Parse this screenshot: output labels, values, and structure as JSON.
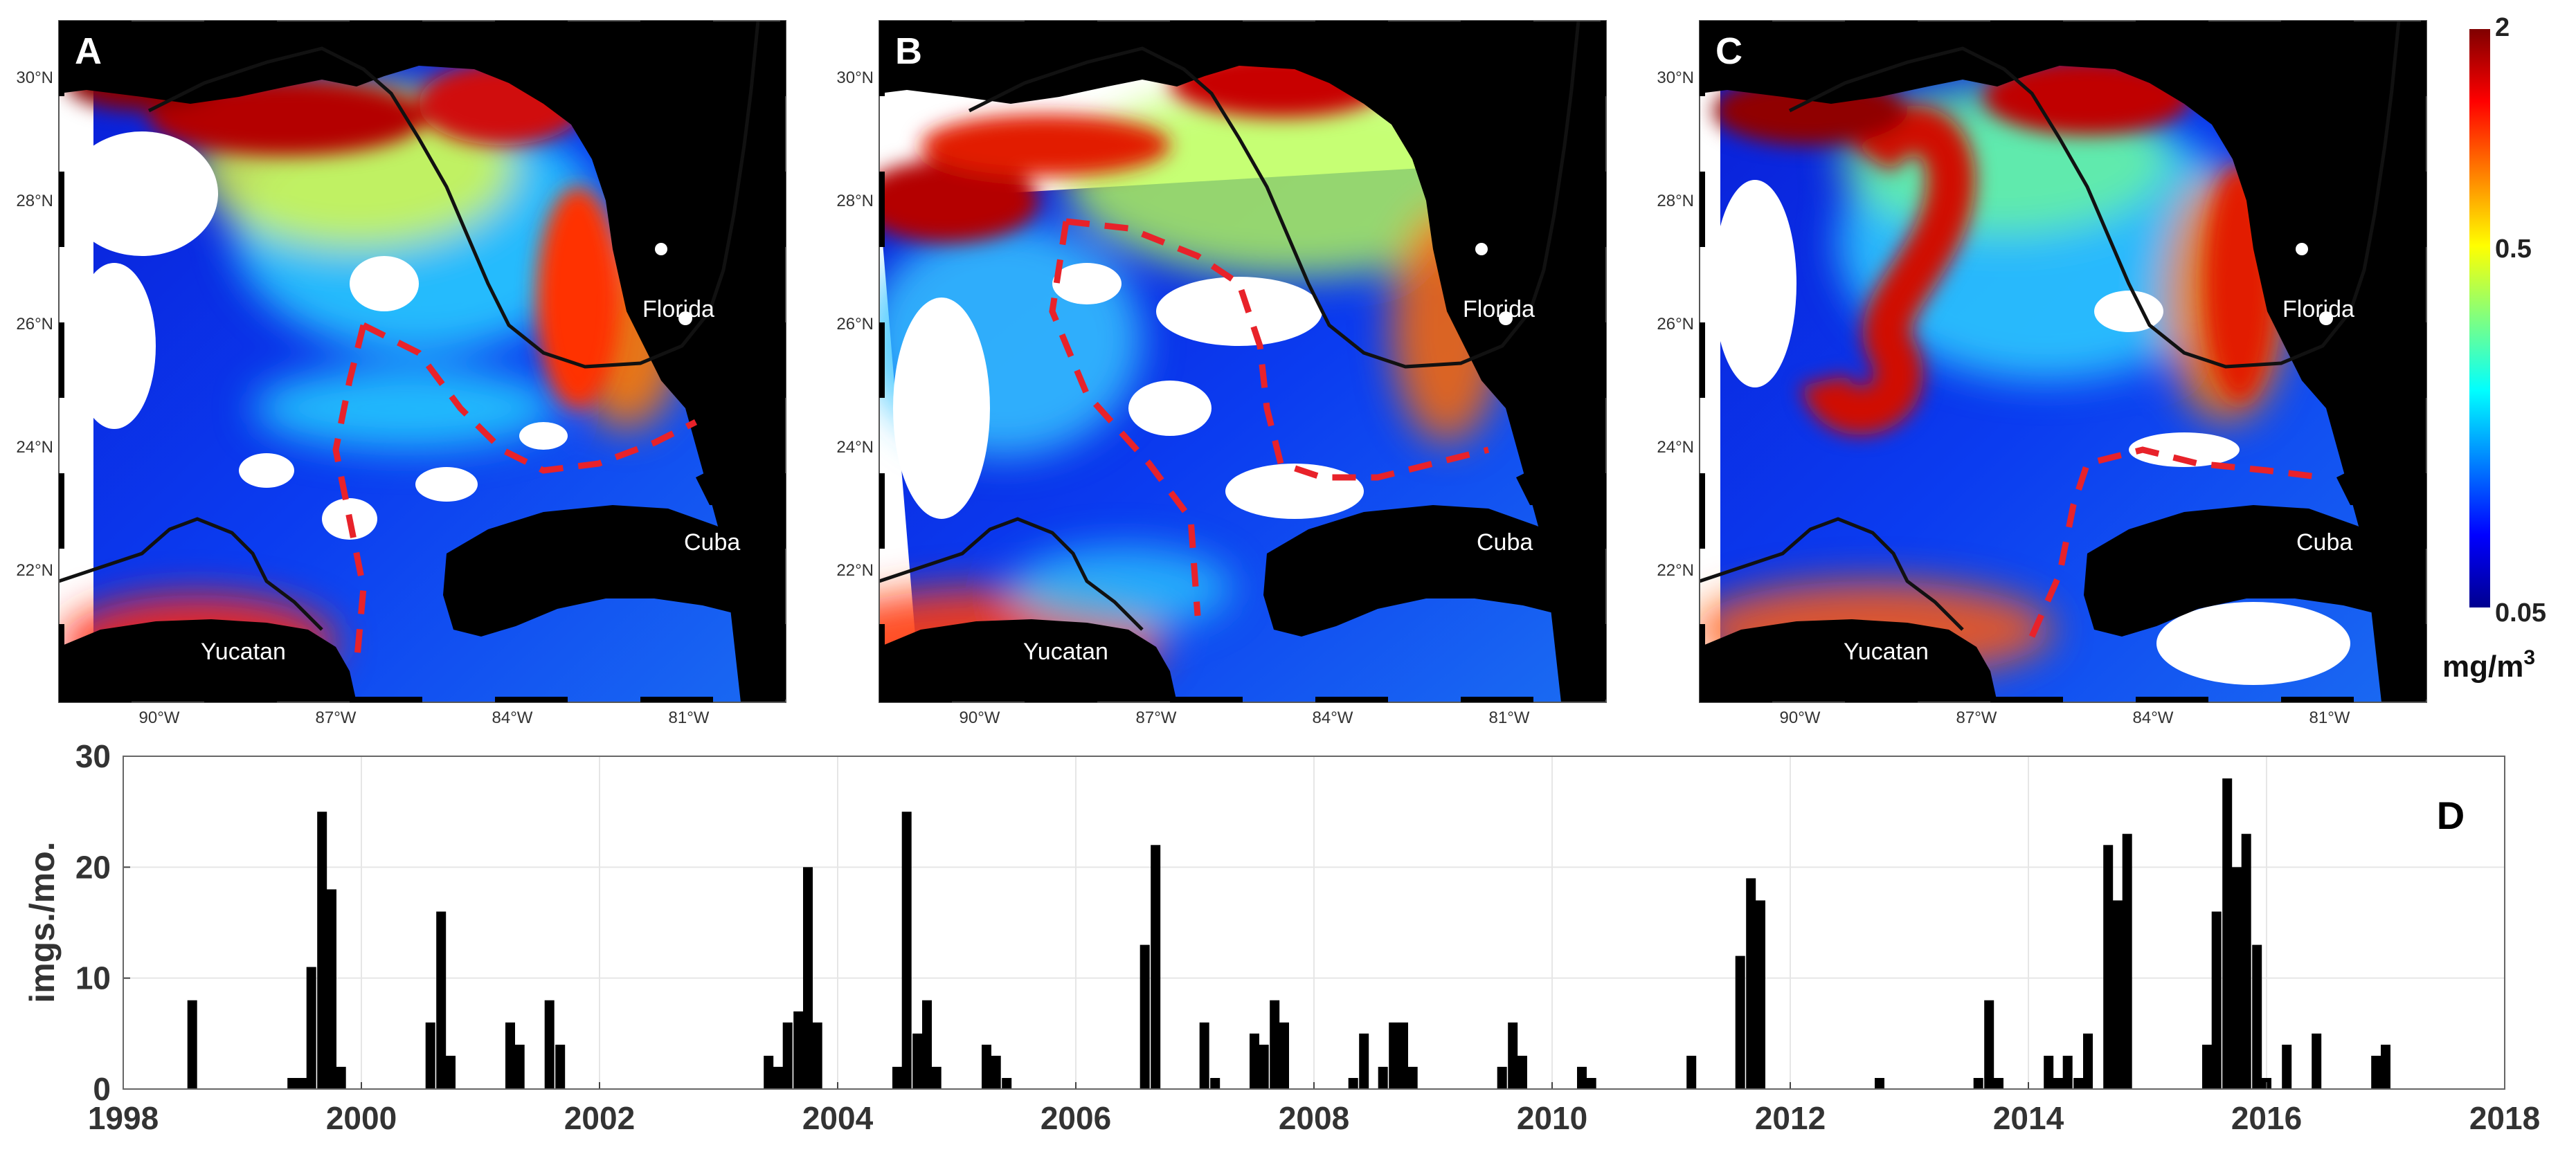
{
  "colors": {
    "land": "#000000",
    "coast": "#111111",
    "front": "#e8222a",
    "cloud": "#ffffff",
    "bar": "#000000",
    "grid": "#e6e6e6",
    "colormap": [
      "#00008f",
      "#0000ff",
      "#0080ff",
      "#00ffff",
      "#80ff80",
      "#ffff00",
      "#ff8000",
      "#ff0000",
      "#800000"
    ]
  },
  "maps": [
    {
      "panel_label": "A",
      "labels": {
        "florida": "Florida",
        "cuba": "Cuba",
        "yucatan": "Yucatan"
      }
    },
    {
      "panel_label": "B",
      "labels": {
        "florida": "Florida",
        "cuba": "Cuba",
        "yucatan": "Yucatan"
      }
    },
    {
      "panel_label": "C",
      "labels": {
        "florida": "Florida",
        "cuba": "Cuba",
        "yucatan": "Yucatan"
      }
    }
  ],
  "map_axes": {
    "lon_ticks": [
      "90°W",
      "87°W",
      "84°W",
      "81°W"
    ],
    "lat_ticks": [
      "30°N",
      "28°N",
      "26°N",
      "24°N",
      "22°N"
    ]
  },
  "colorbar": {
    "top_label": "2",
    "mid_label": "0.5",
    "bottom_label": "0.05",
    "units_base": "mg/m",
    "units_exp": "3"
  },
  "chart_data": {
    "type": "bar",
    "panel_label": "D",
    "title": "",
    "xlabel": "",
    "ylabel": "imgs./mo.",
    "xlim": [
      1998,
      2018
    ],
    "ylim": [
      0,
      30
    ],
    "x_ticks": [
      "1998",
      "2000",
      "2002",
      "2004",
      "2006",
      "2008",
      "2010",
      "2012",
      "2014",
      "2016",
      "2018"
    ],
    "y_ticks": [
      "0",
      "10",
      "20",
      "30"
    ],
    "grid": true,
    "points": [
      {
        "x": 1998.58,
        "y": 8
      },
      {
        "x": 1999.42,
        "y": 1
      },
      {
        "x": 1999.5,
        "y": 1
      },
      {
        "x": 1999.58,
        "y": 11
      },
      {
        "x": 1999.67,
        "y": 25
      },
      {
        "x": 1999.75,
        "y": 18
      },
      {
        "x": 1999.83,
        "y": 2
      },
      {
        "x": 2000.58,
        "y": 6
      },
      {
        "x": 2000.67,
        "y": 16
      },
      {
        "x": 2000.75,
        "y": 3
      },
      {
        "x": 2001.25,
        "y": 6
      },
      {
        "x": 2001.33,
        "y": 4
      },
      {
        "x": 2001.58,
        "y": 8
      },
      {
        "x": 2001.67,
        "y": 4
      },
      {
        "x": 2003.42,
        "y": 3
      },
      {
        "x": 2003.5,
        "y": 2
      },
      {
        "x": 2003.58,
        "y": 6
      },
      {
        "x": 2003.67,
        "y": 7
      },
      {
        "x": 2003.75,
        "y": 20
      },
      {
        "x": 2003.83,
        "y": 6
      },
      {
        "x": 2004.5,
        "y": 2
      },
      {
        "x": 2004.58,
        "y": 25
      },
      {
        "x": 2004.67,
        "y": 5
      },
      {
        "x": 2004.75,
        "y": 8
      },
      {
        "x": 2004.83,
        "y": 2
      },
      {
        "x": 2005.25,
        "y": 4
      },
      {
        "x": 2005.33,
        "y": 3
      },
      {
        "x": 2005.42,
        "y": 1
      },
      {
        "x": 2006.58,
        "y": 13
      },
      {
        "x": 2006.67,
        "y": 22
      },
      {
        "x": 2007.08,
        "y": 6
      },
      {
        "x": 2007.17,
        "y": 1
      },
      {
        "x": 2007.5,
        "y": 5
      },
      {
        "x": 2007.58,
        "y": 4
      },
      {
        "x": 2007.67,
        "y": 8
      },
      {
        "x": 2007.75,
        "y": 6
      },
      {
        "x": 2008.33,
        "y": 1
      },
      {
        "x": 2008.42,
        "y": 5
      },
      {
        "x": 2008.58,
        "y": 2
      },
      {
        "x": 2008.67,
        "y": 6
      },
      {
        "x": 2008.75,
        "y": 6
      },
      {
        "x": 2008.83,
        "y": 2
      },
      {
        "x": 2009.58,
        "y": 2
      },
      {
        "x": 2009.67,
        "y": 6
      },
      {
        "x": 2009.75,
        "y": 3
      },
      {
        "x": 2010.25,
        "y": 2
      },
      {
        "x": 2010.33,
        "y": 1
      },
      {
        "x": 2011.17,
        "y": 3
      },
      {
        "x": 2011.58,
        "y": 12
      },
      {
        "x": 2011.67,
        "y": 19
      },
      {
        "x": 2011.75,
        "y": 17
      },
      {
        "x": 2012.75,
        "y": 1
      },
      {
        "x": 2013.58,
        "y": 1
      },
      {
        "x": 2013.67,
        "y": 8
      },
      {
        "x": 2013.75,
        "y": 1
      },
      {
        "x": 2014.17,
        "y": 3
      },
      {
        "x": 2014.25,
        "y": 1
      },
      {
        "x": 2014.33,
        "y": 3
      },
      {
        "x": 2014.42,
        "y": 1
      },
      {
        "x": 2014.5,
        "y": 5
      },
      {
        "x": 2014.67,
        "y": 22
      },
      {
        "x": 2014.75,
        "y": 17
      },
      {
        "x": 2014.83,
        "y": 23
      },
      {
        "x": 2015.5,
        "y": 4
      },
      {
        "x": 2015.58,
        "y": 16
      },
      {
        "x": 2015.67,
        "y": 28
      },
      {
        "x": 2015.75,
        "y": 20
      },
      {
        "x": 2015.83,
        "y": 23
      },
      {
        "x": 2015.92,
        "y": 13
      },
      {
        "x": 2016.0,
        "y": 1
      },
      {
        "x": 2016.17,
        "y": 4
      },
      {
        "x": 2016.42,
        "y": 5
      },
      {
        "x": 2016.92,
        "y": 3
      },
      {
        "x": 2017.0,
        "y": 4
      }
    ]
  }
}
